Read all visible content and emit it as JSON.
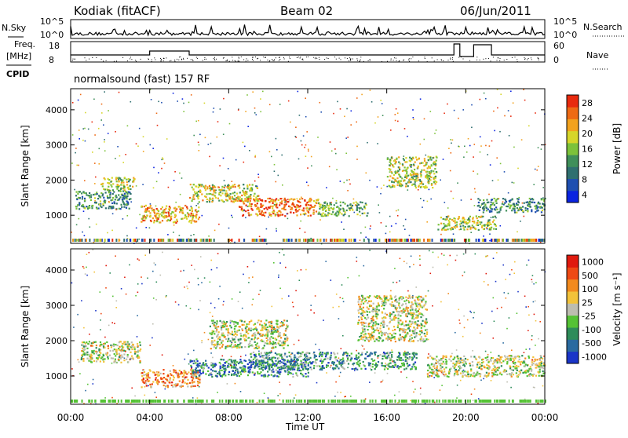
{
  "header": {
    "title": "Kodiak (fitACF)",
    "beam": "Beam 02",
    "date": "06/Jun/2011"
  },
  "top_panels": {
    "nsky_label": "N.Sky",
    "nsearch_label": "N.Search",
    "nsky_ticks": [
      "10^5",
      "10^0"
    ],
    "nsearch_ticks": [
      "10^5",
      "10^0"
    ],
    "freq_label_1": "Freq.",
    "freq_label_2": "[MHz]",
    "freq_ticks": [
      "18",
      "8"
    ],
    "nave_label": "Nave",
    "nave_ticks": [
      "60",
      "0"
    ],
    "cpid_label": "CPID",
    "cpid_text": "normalsound (fast) 157 RF"
  },
  "chart_data": [
    {
      "type": "heatmap",
      "title": "",
      "xlabel": "Time UT",
      "ylabel": "Slant Range [km]",
      "x_ticks": [
        "00:00",
        "04:00",
        "08:00",
        "12:00",
        "16:00",
        "20:00",
        "00:00"
      ],
      "y_ticks": [
        1000,
        2000,
        3000,
        4000
      ],
      "ylim": [
        200,
        4600
      ],
      "colorbar_label": "Power [dB]",
      "colorbar_ticks": [
        "28",
        "24",
        "20",
        "16",
        "12",
        "8",
        "4"
      ],
      "colors": [
        "#0a23e0",
        "#1f4fb0",
        "#2f6f70",
        "#3f8f5a",
        "#7cc23a",
        "#d6d62a",
        "#f2a21e",
        "#ee6a14",
        "#e82a0e"
      ],
      "bands": [
        {
          "t": [
            0.2,
            3.0
          ],
          "r": [
            1200,
            1700
          ],
          "level": 0.35
        },
        {
          "t": [
            1.5,
            3.2
          ],
          "r": [
            1700,
            2100
          ],
          "level": 0.55
        },
        {
          "t": [
            3.5,
            6.5
          ],
          "r": [
            800,
            1300
          ],
          "level": 0.7
        },
        {
          "t": [
            6.0,
            9.5
          ],
          "r": [
            1400,
            1900
          ],
          "level": 0.6
        },
        {
          "t": [
            8.5,
            12.5
          ],
          "r": [
            1000,
            1500
          ],
          "level": 0.8
        },
        {
          "t": [
            12.5,
            15.0
          ],
          "r": [
            1000,
            1400
          ],
          "level": 0.45
        },
        {
          "t": [
            16.0,
            18.5
          ],
          "r": [
            1800,
            2700
          ],
          "level": 0.55
        },
        {
          "t": [
            18.5,
            21.5
          ],
          "r": [
            600,
            1000
          ],
          "level": 0.55
        },
        {
          "t": [
            20.5,
            24.0
          ],
          "r": [
            1100,
            1500
          ],
          "level": 0.35
        }
      ]
    },
    {
      "type": "heatmap",
      "title": "",
      "xlabel": "Time UT",
      "ylabel": "Slant Range [km]",
      "x_ticks": [
        "00:00",
        "04:00",
        "08:00",
        "12:00",
        "16:00",
        "20:00",
        "00:00"
      ],
      "y_ticks": [
        1000,
        2000,
        3000,
        4000
      ],
      "ylim": [
        200,
        4600
      ],
      "colorbar_label": "Velocity [m s⁻¹]",
      "colorbar_ticks": [
        "1000",
        "500",
        "100",
        "25",
        "-25",
        "-100",
        "-500",
        "-1000"
      ],
      "colors": [
        "#1a35c8",
        "#2a6aa0",
        "#2e8c5a",
        "#55c235",
        "#bdbdb0",
        "#f2c23a",
        "#f28a1e",
        "#ee4a14",
        "#e01a0e"
      ],
      "bands": [
        {
          "t": [
            0.5,
            3.5
          ],
          "r": [
            1400,
            2000
          ],
          "level": 0.5
        },
        {
          "t": [
            3.5,
            6.5
          ],
          "r": [
            700,
            1200
          ],
          "level": 0.7
        },
        {
          "t": [
            6.0,
            12.0
          ],
          "r": [
            1000,
            1500
          ],
          "level": 0.25
        },
        {
          "t": [
            9.0,
            17.5
          ],
          "r": [
            1200,
            1700
          ],
          "level": 0.3
        },
        {
          "t": [
            7.0,
            11.0
          ],
          "r": [
            1800,
            2600
          ],
          "level": 0.5
        },
        {
          "t": [
            14.5,
            18.0
          ],
          "r": [
            2000,
            3300
          ],
          "level": 0.5
        },
        {
          "t": [
            18.0,
            24.0
          ],
          "r": [
            1000,
            1600
          ],
          "level": 0.5
        }
      ]
    }
  ]
}
